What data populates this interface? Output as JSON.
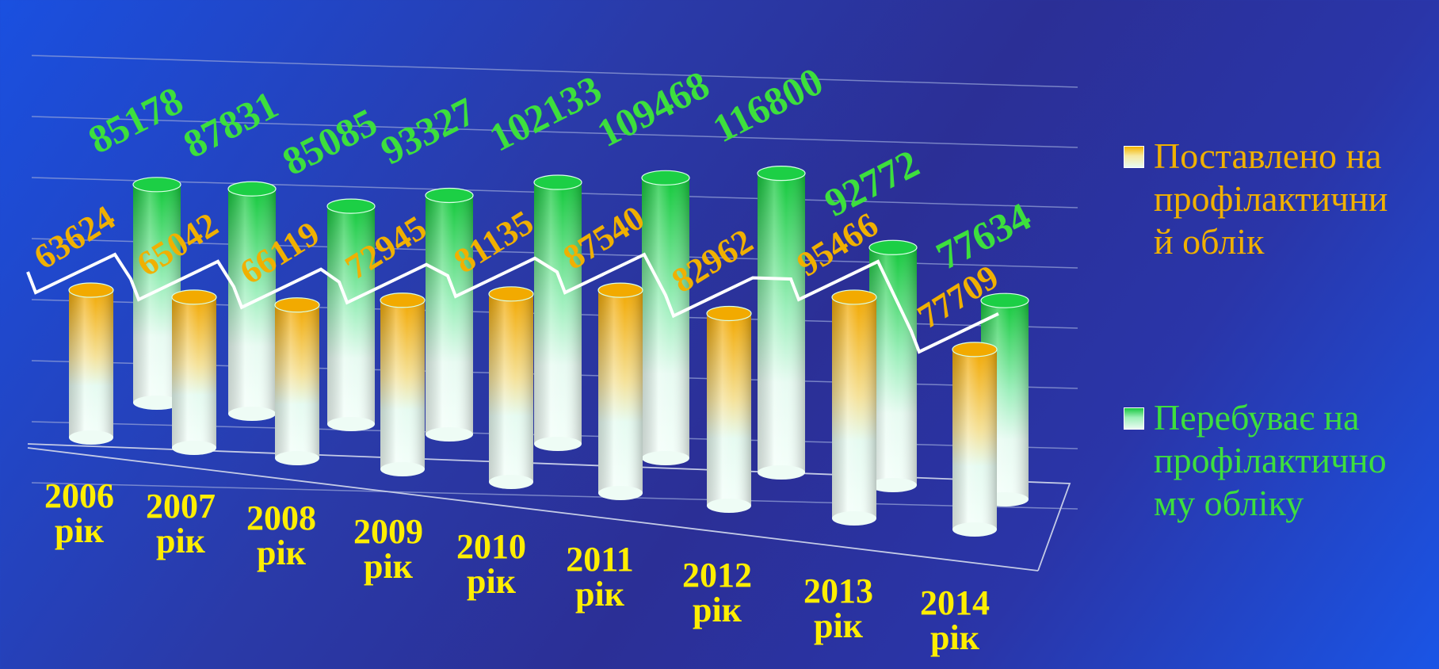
{
  "chart_data": {
    "type": "bar",
    "style": "3d-cylinder",
    "categories": [
      "2006 рік",
      "2007 рік",
      "2008 рік",
      "2009 рік",
      "2010 рік",
      "2011 рік",
      "2012 рік",
      "2013 рік",
      "2014 рік"
    ],
    "category_lines": [
      [
        "2006",
        "рік"
      ],
      [
        "2007",
        "рік"
      ],
      [
        "2008",
        "рік"
      ],
      [
        "2009",
        "рік"
      ],
      [
        "2010",
        "рік"
      ],
      [
        "2011",
        "рік"
      ],
      [
        "2012",
        "рік"
      ],
      [
        "2013",
        "рік"
      ],
      [
        "2014",
        "рік"
      ]
    ],
    "series": [
      {
        "name": "Поставлено на профілактичний облік",
        "legend_lines": [
          "Поставлено на",
          "профілактични",
          "й облік"
        ],
        "color": "#f0b000",
        "values": [
          63624,
          65042,
          66119,
          72945,
          81135,
          87540,
          82962,
          95466,
          77709
        ],
        "labels": [
          "63624",
          "65042",
          "66119",
          "72945",
          "81135",
          "87540",
          "82962",
          "95466",
          "77709"
        ]
      },
      {
        "name": "Перебуває на профілактичному обліку",
        "legend_lines": [
          "Перебуває на",
          "профілактично",
          "му обліку"
        ],
        "color": "#3ddf3d",
        "values": [
          85178,
          87831,
          85085,
          93327,
          102133,
          109468,
          116800,
          92772,
          77634
        ],
        "labels": [
          "85178",
          "87831",
          "85085",
          "93327",
          "102133",
          "109468",
          "116800",
          "92772",
          "77634"
        ]
      }
    ],
    "legend_position": "right",
    "grid": true,
    "ylim": [
      0,
      130000
    ]
  },
  "colors": {
    "accent_orange": "#f0b000",
    "accent_green": "#3ddf3d",
    "category_text": "#ffee00",
    "background": "#2a3aa8"
  }
}
